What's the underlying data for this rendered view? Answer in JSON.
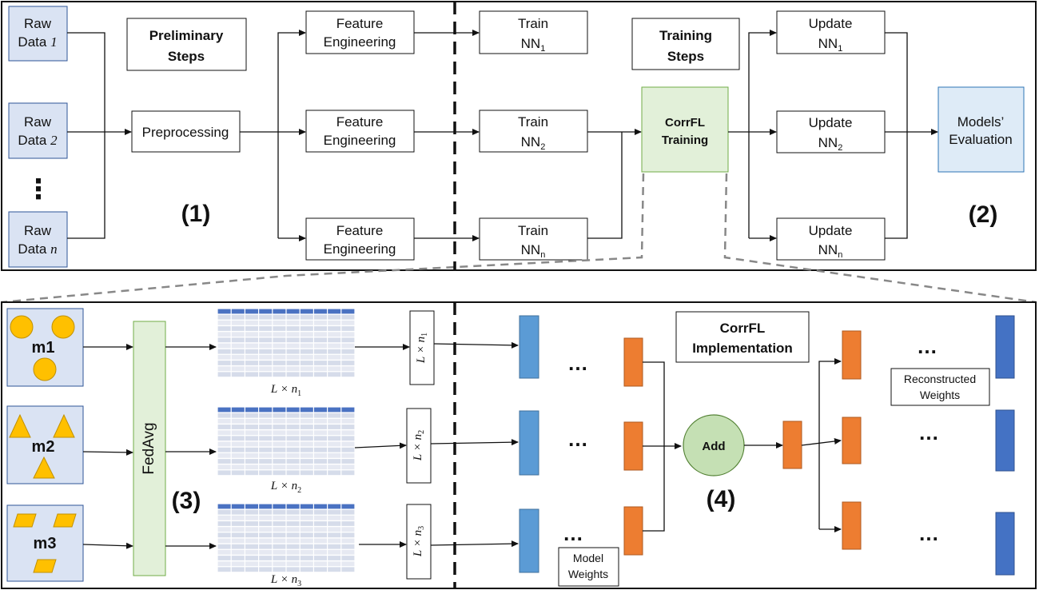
{
  "top": {
    "raw_data_prefix": "Raw",
    "raw_data": [
      {
        "line2": "Data",
        "suffix": "1"
      },
      {
        "line2": "Data",
        "suffix": "2"
      },
      {
        "line2": "Data",
        "suffix": "n"
      }
    ],
    "ellipsis": "⋮",
    "preliminary": [
      "Preliminary",
      "Steps"
    ],
    "preprocessing": "Preprocessing",
    "feature_engineering": [
      "Feature",
      "Engineering"
    ],
    "train_label": "Train",
    "nn_label": "NN",
    "subscripts": [
      "1",
      "2",
      "n"
    ],
    "training_steps": [
      "Training",
      "Steps"
    ],
    "corrfl_training": [
      "CorrFL",
      "Training"
    ],
    "update_label": "Update",
    "models_evaluation": [
      "Models’",
      "Evaluation"
    ],
    "label_1": "(1)",
    "label_2": "(2)"
  },
  "bottom": {
    "models": [
      "m1",
      "m2",
      "m3"
    ],
    "fedavg": "FedAvg",
    "matrix_base": "L × n",
    "matrix_subs": [
      "1",
      "2",
      "3"
    ],
    "dots": "…",
    "model_weights": [
      "Model",
      "Weights"
    ],
    "corrfl_impl": [
      "CorrFL",
      "Implementation"
    ],
    "add": "Add",
    "reconstructed": [
      "Reconstructed",
      "Weights"
    ],
    "label_3": "(3)",
    "label_4": "(4)"
  },
  "colors": {
    "raw_fill": "#dae3f3",
    "raw_stroke": "#2f5597",
    "green_fill": "#e2f0d9",
    "green_stroke": "#70ad47",
    "eval_fill": "#deebf7",
    "eval_stroke": "#2e75b6",
    "yellow": "#ffc000",
    "yellow_stroke": "#c09000",
    "blue_bar": "#5b9bd5",
    "orange_bar": "#ed7d31",
    "dark_blue_bar": "#4472c4",
    "add_fill": "#c5e0b4"
  }
}
